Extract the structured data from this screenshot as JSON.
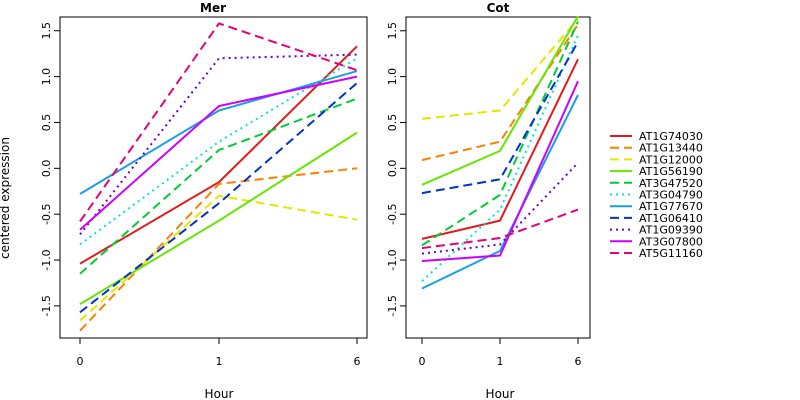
{
  "chart_data": {
    "type": "line",
    "ylabel": "centered expression",
    "xlabel": "Hour",
    "x": [
      "0",
      "1",
      "6"
    ],
    "ylim": [
      -1.85,
      1.65
    ],
    "yticks": [
      "-1.5",
      "-1.0",
      "-0.5",
      "0.0",
      "0.5",
      "1.0",
      "1.5"
    ],
    "legend_position": "right",
    "panels": [
      {
        "title": "Mer",
        "series": [
          {
            "name": "AT1G74030",
            "color": "#e31a1c",
            "dash": "solid",
            "values": [
              -1.04,
              -0.15,
              1.33
            ]
          },
          {
            "name": "AT1G13440",
            "color": "#ff7f00",
            "dash": "dashed",
            "values": [
              -1.77,
              -0.17,
              0.0
            ]
          },
          {
            "name": "AT1G12000",
            "color": "#e6e600",
            "dash": "dashed",
            "values": [
              -1.66,
              -0.3,
              -0.56
            ]
          },
          {
            "name": "AT1G56190",
            "color": "#66e600",
            "dash": "solid",
            "values": [
              -1.48,
              -0.57,
              0.39
            ]
          },
          {
            "name": "AT3G47520",
            "color": "#00cc33",
            "dash": "dashed",
            "values": [
              -1.15,
              0.2,
              0.76
            ]
          },
          {
            "name": "AT3G04790",
            "color": "#00e6cc",
            "dash": "dotted",
            "values": [
              -0.83,
              0.29,
              1.2
            ]
          },
          {
            "name": "AT1G77670",
            "color": "#1a9fe6",
            "dash": "solid",
            "values": [
              -0.28,
              0.63,
              1.06
            ]
          },
          {
            "name": "AT1G06410",
            "color": "#0033cc",
            "dash": "dashed",
            "values": [
              -1.57,
              -0.38,
              0.93
            ]
          },
          {
            "name": "AT1G09390",
            "color": "#6600cc",
            "dash": "dotted",
            "values": [
              -0.72,
              1.2,
              1.24
            ]
          },
          {
            "name": "AT3G07800",
            "color": "#cc00ff",
            "dash": "solid",
            "values": [
              -0.67,
              0.68,
              1.0
            ]
          },
          {
            "name": "AT5G11160",
            "color": "#e6007a",
            "dash": "dashed",
            "values": [
              -0.58,
              1.58,
              1.07
            ]
          }
        ]
      },
      {
        "title": "Cot",
        "series": [
          {
            "name": "AT1G74030",
            "color": "#e31a1c",
            "dash": "solid",
            "values": [
              -0.77,
              -0.57,
              1.19
            ]
          },
          {
            "name": "AT1G13440",
            "color": "#ff7f00",
            "dash": "dashed",
            "values": [
              0.09,
              0.29,
              1.57
            ]
          },
          {
            "name": "AT1G12000",
            "color": "#e6e600",
            "dash": "dashed",
            "values": [
              0.54,
              0.63,
              1.63
            ]
          },
          {
            "name": "AT1G56190",
            "color": "#66e600",
            "dash": "solid",
            "values": [
              -0.18,
              0.19,
              1.66
            ]
          },
          {
            "name": "AT3G47520",
            "color": "#00cc33",
            "dash": "dashed",
            "values": [
              -0.84,
              -0.29,
              1.6
            ]
          },
          {
            "name": "AT3G04790",
            "color": "#00e6cc",
            "dash": "dotted",
            "values": [
              -1.23,
              -0.45,
              1.45
            ]
          },
          {
            "name": "AT1G77670",
            "color": "#1a9fe6",
            "dash": "solid",
            "values": [
              -1.31,
              -0.9,
              0.8
            ]
          },
          {
            "name": "AT1G06410",
            "color": "#0033cc",
            "dash": "dashed",
            "values": [
              -0.27,
              -0.12,
              1.38
            ]
          },
          {
            "name": "AT1G09390",
            "color": "#6600cc",
            "dash": "dotted",
            "values": [
              -0.93,
              -0.83,
              0.06
            ]
          },
          {
            "name": "AT3G07800",
            "color": "#cc00ff",
            "dash": "solid",
            "values": [
              -1.01,
              -0.95,
              0.95
            ]
          },
          {
            "name": "AT5G11160",
            "color": "#e6007a",
            "dash": "dashed",
            "values": [
              -0.87,
              -0.76,
              -0.45
            ]
          }
        ]
      }
    ]
  }
}
